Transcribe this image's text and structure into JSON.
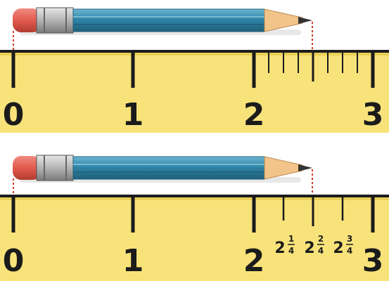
{
  "top_ruler": {
    "labels": [
      "0",
      "1",
      "2",
      "3"
    ],
    "subdivisions_between_2_and_3": 8,
    "pencil_ends_at": 2.5
  },
  "bottom_ruler": {
    "labels": [
      "0",
      "1",
      "2",
      "3"
    ],
    "fraction_marks": [
      {
        "whole": "2",
        "num": "1",
        "den": "4"
      },
      {
        "whole": "2",
        "num": "2",
        "den": "4"
      },
      {
        "whole": "2",
        "num": "3",
        "den": "4"
      }
    ],
    "pencil_ends_at": 2.5
  },
  "colors": {
    "ruler": "#f7e37a",
    "ruler_edge": "#e8cf55",
    "ink": "#1b1b1b",
    "pencil_body": "#2f86a8",
    "pencil_dark": "#1f5f7a",
    "pencil_light": "#6bb6d2",
    "wood": "#f2c48a",
    "lead": "#333333",
    "eraser": "#e25a4e",
    "ferrule": "#b8b8b8",
    "guide": "#d23a2a"
  }
}
